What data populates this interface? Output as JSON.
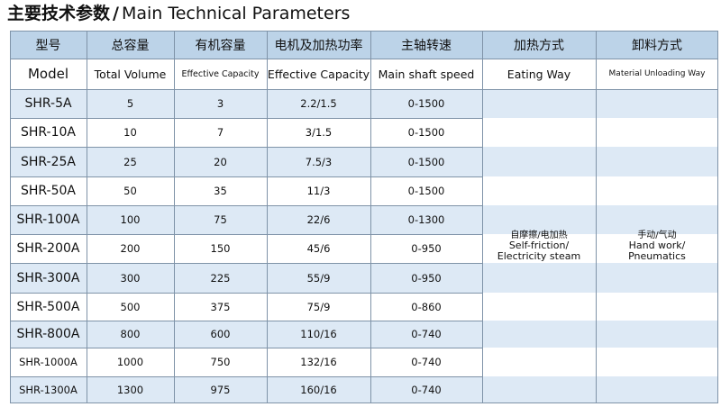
{
  "title": {
    "zh": "主要技术参数",
    "separator": "/",
    "en": "Main Technical Parameters"
  },
  "table": {
    "headers_zh": [
      "型号",
      "总容量",
      "有机容量",
      "电机及加热功率",
      "主轴转速",
      "加热方式",
      "卸料方式"
    ],
    "headers_en": [
      "Model",
      "Total Volume",
      "Effective Capacity",
      "Effective Capacity",
      "Main shaft speed",
      "Eating Way",
      "Material Unloading Way"
    ],
    "rows": [
      {
        "model": "SHR-5A",
        "total": "5",
        "effective": "3",
        "power": "2.2/1.5",
        "speed": "0-1500"
      },
      {
        "model": "SHR-10A",
        "total": "10",
        "effective": "7",
        "power": "3/1.5",
        "speed": "0-1500"
      },
      {
        "model": "SHR-25A",
        "total": "25",
        "effective": "20",
        "power": "7.5/3",
        "speed": "0-1500"
      },
      {
        "model": "SHR-50A",
        "total": "50",
        "effective": "35",
        "power": "11/3",
        "speed": "0-1500"
      },
      {
        "model": "SHR-100A",
        "total": "100",
        "effective": "75",
        "power": "22/6",
        "speed": "0-1300"
      },
      {
        "model": "SHR-200A",
        "total": "200",
        "effective": "150",
        "power": "45/6",
        "speed": "0-950"
      },
      {
        "model": "SHR-300A",
        "total": "300",
        "effective": "225",
        "power": "55/9",
        "speed": "0-950"
      },
      {
        "model": "SHR-500A",
        "total": "500",
        "effective": "375",
        "power": "75/9",
        "speed": "0-860"
      },
      {
        "model": "SHR-800A",
        "total": "800",
        "effective": "600",
        "power": "110/16",
        "speed": "0-740"
      },
      {
        "model": "SHR-1000A",
        "total": "1000",
        "effective": "750",
        "power": "132/16",
        "speed": "0-740"
      },
      {
        "model": "SHR-1300A",
        "total": "1300",
        "effective": "975",
        "power": "160/16",
        "speed": "0-740"
      }
    ],
    "heating_way": {
      "zh": "自摩擦/电加热",
      "en1": "Self-friction/",
      "en2": "Electricity steam"
    },
    "unloading_way": {
      "zh": "手动/气动",
      "en1": "Hand work/",
      "en2": "Pneumatics"
    }
  },
  "colors": {
    "header_bg": "#bcd3e8",
    "band_bg": "#dde9f5",
    "white_bg": "#ffffff",
    "grid_line": "#7f93a8"
  }
}
